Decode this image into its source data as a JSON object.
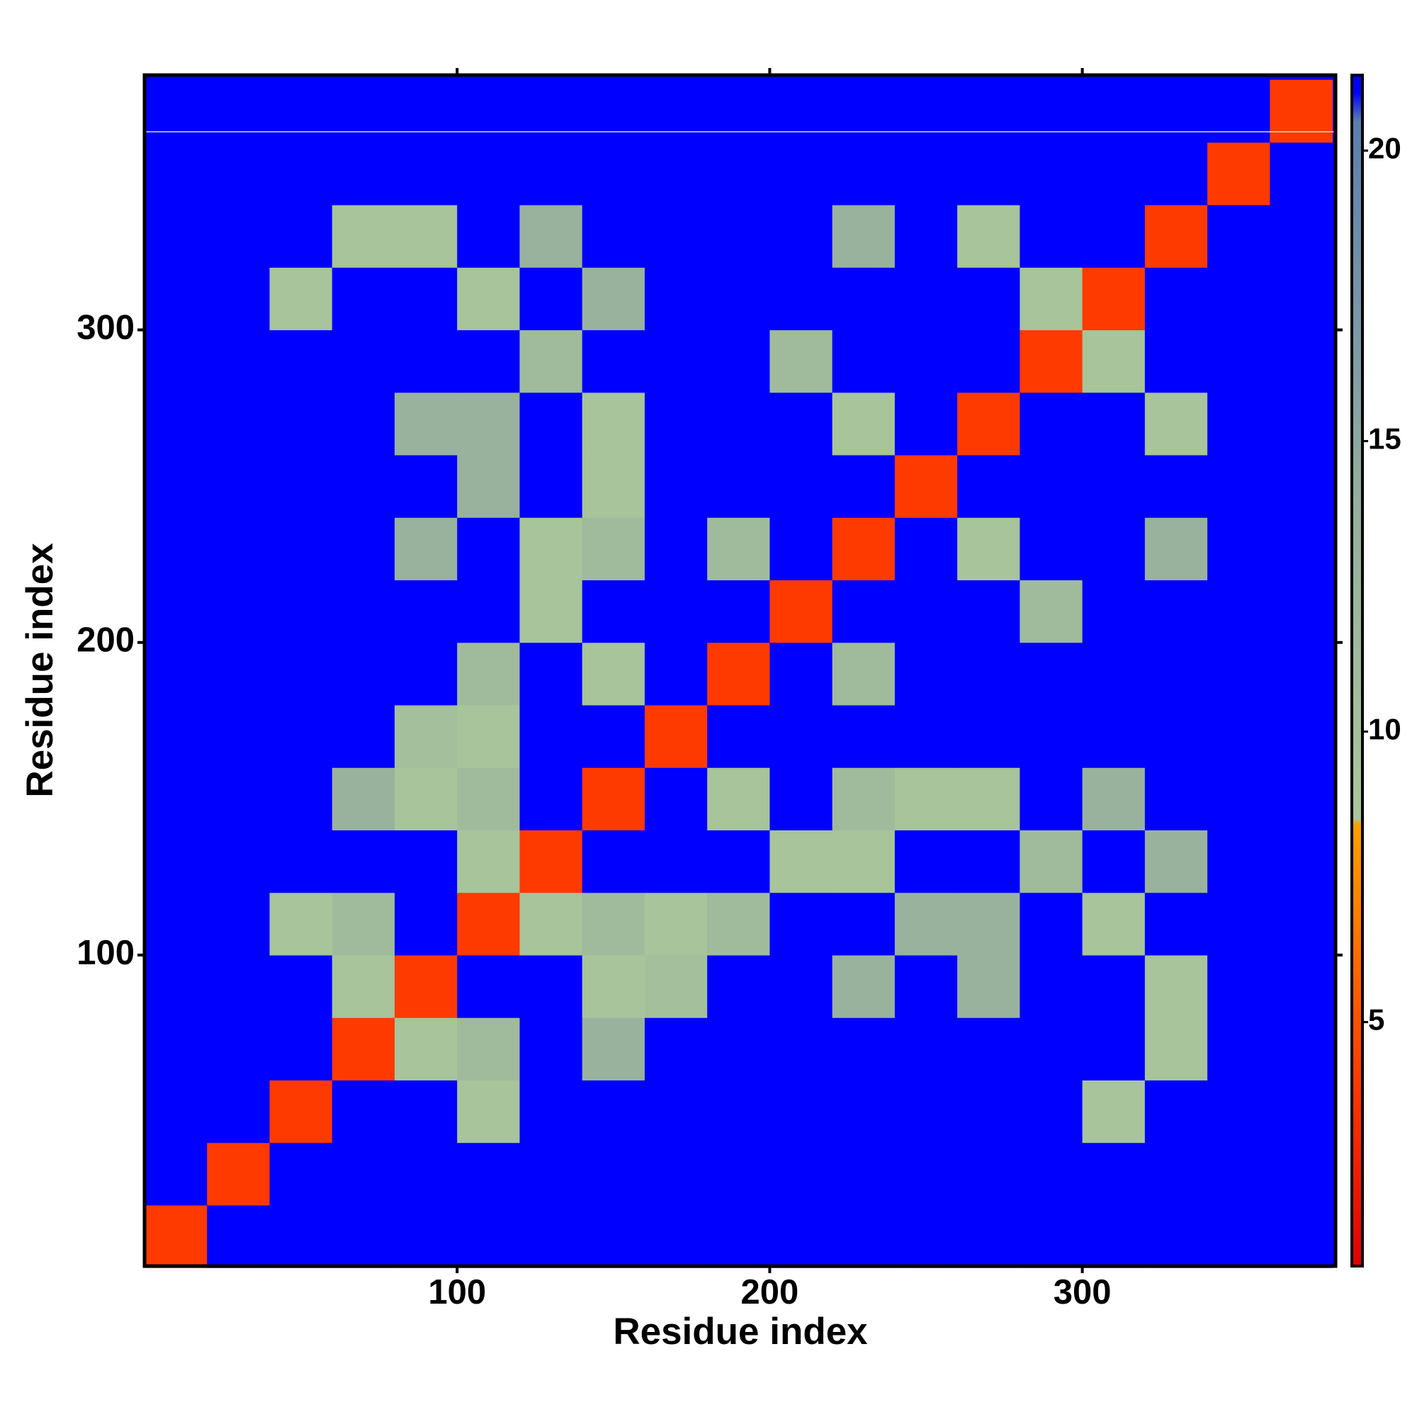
{
  "chart_data": {
    "type": "heatmap",
    "x_label": "Residue index",
    "y_label": "Residue index",
    "bins": [
      0,
      20,
      40,
      60,
      80,
      100,
      120,
      140,
      160,
      180,
      200,
      220,
      240,
      260,
      280,
      300,
      320,
      340,
      360,
      380
    ],
    "z": [
      [
        4,
        21,
        21,
        21,
        21,
        21,
        21,
        21,
        21,
        21,
        21,
        21,
        21,
        21,
        21,
        21,
        21,
        21,
        21
      ],
      [
        21,
        4,
        21,
        21,
        21,
        21,
        21,
        21,
        21,
        21,
        21,
        21,
        21,
        21,
        21,
        21,
        21,
        21,
        21
      ],
      [
        21,
        21,
        4,
        21,
        21,
        9,
        21,
        21,
        21,
        21,
        21,
        21,
        21,
        21,
        21,
        9,
        21,
        21,
        21
      ],
      [
        21,
        21,
        21,
        4,
        9,
        11,
        21,
        13,
        21,
        21,
        21,
        21,
        21,
        21,
        21,
        21,
        9,
        21,
        21
      ],
      [
        21,
        21,
        21,
        9,
        4,
        21,
        21,
        9,
        10,
        21,
        21,
        13,
        21,
        13,
        21,
        21,
        9,
        21,
        21
      ],
      [
        21,
        21,
        9,
        11,
        21,
        4,
        9,
        11,
        9,
        11,
        21,
        21,
        13,
        13,
        21,
        9,
        21,
        21,
        21
      ],
      [
        21,
        21,
        21,
        21,
        21,
        9,
        4,
        21,
        21,
        21,
        9,
        9,
        21,
        21,
        11,
        21,
        13,
        21,
        21
      ],
      [
        21,
        21,
        21,
        13,
        9,
        11,
        21,
        4,
        21,
        9,
        21,
        11,
        9,
        9,
        21,
        13,
        21,
        21,
        21
      ],
      [
        21,
        21,
        21,
        21,
        10,
        9,
        21,
        21,
        4,
        21,
        21,
        21,
        21,
        21,
        21,
        21,
        21,
        21,
        21
      ],
      [
        21,
        21,
        21,
        21,
        21,
        11,
        21,
        9,
        21,
        4,
        21,
        11,
        21,
        21,
        21,
        21,
        21,
        21,
        21
      ],
      [
        21,
        21,
        21,
        21,
        21,
        21,
        9,
        21,
        21,
        21,
        4,
        21,
        21,
        21,
        11,
        21,
        21,
        21,
        21
      ],
      [
        21,
        21,
        21,
        21,
        13,
        21,
        9,
        11,
        21,
        11,
        21,
        4,
        21,
        9,
        21,
        21,
        13,
        21,
        21
      ],
      [
        21,
        21,
        21,
        21,
        21,
        13,
        21,
        9,
        21,
        21,
        21,
        21,
        4,
        21,
        21,
        21,
        21,
        21,
        21
      ],
      [
        21,
        21,
        21,
        21,
        13,
        13,
        21,
        9,
        21,
        21,
        21,
        9,
        21,
        4,
        21,
        21,
        9,
        21,
        21
      ],
      [
        21,
        21,
        21,
        21,
        21,
        21,
        11,
        21,
        21,
        21,
        11,
        21,
        21,
        21,
        4,
        9,
        21,
        21,
        21
      ],
      [
        21,
        21,
        9,
        21,
        21,
        9,
        21,
        13,
        21,
        21,
        21,
        21,
        21,
        21,
        9,
        4,
        21,
        21,
        21
      ],
      [
        21,
        21,
        21,
        9,
        9,
        21,
        13,
        21,
        21,
        21,
        21,
        13,
        21,
        9,
        21,
        21,
        4,
        21,
        21
      ],
      [
        21,
        21,
        21,
        21,
        21,
        21,
        21,
        21,
        21,
        21,
        21,
        21,
        21,
        21,
        21,
        21,
        21,
        4,
        21
      ],
      [
        21,
        21,
        21,
        21,
        21,
        21,
        21,
        21,
        21,
        21,
        21,
        21,
        21,
        21,
        21,
        21,
        21,
        21,
        4
      ]
    ],
    "xlim": [
      0,
      381
    ],
    "ylim": [
      0.5,
      381.5
    ],
    "xticks": [
      100,
      200,
      300
    ],
    "yticks": [
      100,
      200,
      300
    ],
    "zlim": [
      0.8,
      21.3
    ],
    "zticks": [
      5,
      10,
      15,
      20
    ],
    "colormap": [
      {
        "value": 0.8,
        "color": "#e00000"
      },
      {
        "value": 4,
        "color": "#ff3a00"
      },
      {
        "value": 8.4,
        "color": "#ffa000"
      },
      {
        "value": 8.5,
        "color": "#a9c69a"
      },
      {
        "value": 14,
        "color": "#95ae9f"
      },
      {
        "value": 20.5,
        "color": "#5b7fae"
      },
      {
        "value": 21,
        "color": "#0000ff"
      }
    ]
  }
}
